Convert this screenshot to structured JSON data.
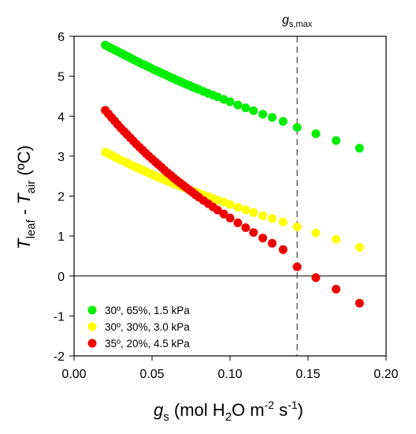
{
  "chart_data": {
    "type": "scatter",
    "xlabel": {
      "var": "g",
      "sub": "s",
      "unit_pre": " (mol H",
      "unit_sub": "2",
      "unit_mid": "O m",
      "unit_sup1": "-2",
      "unit_s": " s",
      "unit_sup2": "-1",
      "unit_post": ")"
    },
    "ylabel": {
      "v1": "T",
      "s1": "leaf",
      "dash": " - ",
      "v2": "T",
      "s2": "air",
      "unit": " (ºC)"
    },
    "xlim": [
      0.0,
      0.2
    ],
    "ylim": [
      -2,
      6
    ],
    "xticks": [
      "0.00",
      "0.05",
      "0.10",
      "0.15",
      "0.20"
    ],
    "yticks": [
      "-2",
      "-1",
      "0",
      "1",
      "2",
      "3",
      "4",
      "5",
      "6"
    ],
    "reference_line": {
      "y": 0
    },
    "vline": {
      "x": 0.143,
      "label_var": "g",
      "label_sub": "s,max"
    },
    "legend_position": "bottom-left",
    "series": [
      {
        "name": "30º, 65%, 1.5 kPa",
        "color": "#00ee00",
        "x": [
          0.02,
          0.022,
          0.024,
          0.026,
          0.028,
          0.03,
          0.032,
          0.034,
          0.036,
          0.038,
          0.04,
          0.042,
          0.044,
          0.046,
          0.048,
          0.05,
          0.052,
          0.054,
          0.056,
          0.058,
          0.06,
          0.062,
          0.064,
          0.066,
          0.068,
          0.07,
          0.072,
          0.074,
          0.076,
          0.078,
          0.08,
          0.083,
          0.086,
          0.089,
          0.092,
          0.096,
          0.1,
          0.105,
          0.11,
          0.115,
          0.121,
          0.127,
          0.134,
          0.143,
          0.155,
          0.168,
          0.183
        ],
        "y": [
          5.78,
          5.74,
          5.7,
          5.66,
          5.62,
          5.58,
          5.54,
          5.5,
          5.46,
          5.42,
          5.38,
          5.34,
          5.3,
          5.27,
          5.23,
          5.19,
          5.15,
          5.12,
          5.08,
          5.05,
          5.01,
          4.97,
          4.94,
          4.9,
          4.87,
          4.83,
          4.8,
          4.77,
          4.73,
          4.7,
          4.67,
          4.62,
          4.57,
          4.53,
          4.48,
          4.42,
          4.36,
          4.28,
          4.21,
          4.14,
          4.05,
          3.97,
          3.87,
          3.72,
          3.56,
          3.39,
          3.2
        ]
      },
      {
        "name": "30º, 30%, 3.0 kPa",
        "color": "#ffff00",
        "x": [
          0.02,
          0.022,
          0.024,
          0.026,
          0.028,
          0.03,
          0.032,
          0.034,
          0.036,
          0.038,
          0.04,
          0.042,
          0.044,
          0.046,
          0.048,
          0.05,
          0.052,
          0.054,
          0.056,
          0.058,
          0.06,
          0.062,
          0.064,
          0.066,
          0.068,
          0.07,
          0.072,
          0.074,
          0.076,
          0.078,
          0.08,
          0.083,
          0.086,
          0.089,
          0.092,
          0.096,
          0.1,
          0.105,
          0.11,
          0.115,
          0.121,
          0.127,
          0.134,
          0.143,
          0.155,
          0.168,
          0.183
        ],
        "y": [
          3.1,
          3.06,
          3.02,
          2.98,
          2.94,
          2.9,
          2.87,
          2.83,
          2.79,
          2.75,
          2.72,
          2.68,
          2.65,
          2.61,
          2.58,
          2.54,
          2.51,
          2.47,
          2.44,
          2.41,
          2.37,
          2.34,
          2.31,
          2.28,
          2.25,
          2.22,
          2.19,
          2.16,
          2.13,
          2.1,
          2.07,
          2.03,
          1.99,
          1.94,
          1.9,
          1.85,
          1.79,
          1.72,
          1.66,
          1.59,
          1.51,
          1.44,
          1.35,
          1.23,
          1.08,
          0.92,
          0.72
        ]
      },
      {
        "name": "35º, 20%, 4.5 kPa",
        "color": "#ee0000",
        "x": [
          0.02,
          0.022,
          0.024,
          0.026,
          0.028,
          0.03,
          0.032,
          0.034,
          0.036,
          0.038,
          0.04,
          0.042,
          0.044,
          0.046,
          0.048,
          0.05,
          0.052,
          0.054,
          0.056,
          0.058,
          0.06,
          0.062,
          0.064,
          0.066,
          0.068,
          0.07,
          0.072,
          0.074,
          0.076,
          0.078,
          0.08,
          0.083,
          0.086,
          0.089,
          0.092,
          0.096,
          0.1,
          0.105,
          0.11,
          0.115,
          0.121,
          0.127,
          0.134,
          0.143,
          0.155,
          0.168,
          0.183
        ],
        "y": [
          4.15,
          4.06,
          3.97,
          3.88,
          3.79,
          3.7,
          3.62,
          3.54,
          3.46,
          3.38,
          3.3,
          3.22,
          3.15,
          3.07,
          3.0,
          2.93,
          2.86,
          2.79,
          2.72,
          2.65,
          2.58,
          2.52,
          2.45,
          2.39,
          2.33,
          2.27,
          2.21,
          2.15,
          2.09,
          2.03,
          1.97,
          1.89,
          1.81,
          1.73,
          1.65,
          1.55,
          1.45,
          1.33,
          1.21,
          1.09,
          0.95,
          0.82,
          0.66,
          0.23,
          -0.04,
          -0.33,
          -0.68
        ]
      }
    ]
  }
}
